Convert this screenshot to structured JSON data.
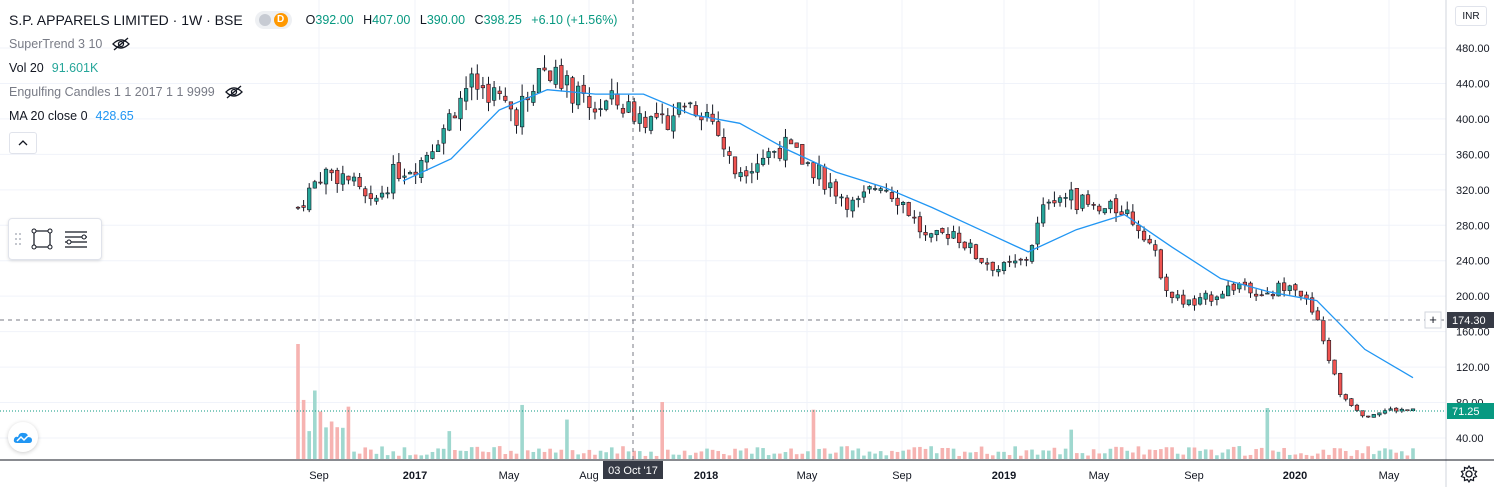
{
  "header": {
    "symbol": "S.P. APPARELS LIMITED · 1W · BSE",
    "badge_letter": "D",
    "ohlc": {
      "o_label": "O",
      "o": "392.00",
      "h_label": "H",
      "h": "407.00",
      "l_label": "L",
      "l": "390.00",
      "c_label": "C",
      "c": "398.25",
      "change": "+6.10 (+1.56%)"
    }
  },
  "indicators": [
    {
      "name": "SuperTrend 3 10",
      "value": "",
      "hidden": true
    },
    {
      "name": "Vol 20",
      "value": "91.601K",
      "hidden": false
    },
    {
      "name": "Engulfing Candles 1 1 2017 1 1 9999",
      "value": "",
      "hidden": true
    },
    {
      "name": "MA 20 close 0",
      "value": "428.65",
      "hidden": false
    }
  ],
  "currency": "INR",
  "crosshair": {
    "date_label": "03 Oct '17",
    "price_label": "174.30"
  },
  "last_price_label": "71.25",
  "colors": {
    "up": "#26a69a",
    "down": "#ef5350",
    "ma": "#2196f3",
    "vol_up": "#9fd8cf",
    "vol_down": "#f6b3b1",
    "last_price": "#089981"
  },
  "chart_data": {
    "type": "candlestick",
    "interval": "1W",
    "x_axis_ticks": [
      "Sep",
      "2017",
      "May",
      "Aug",
      "2018",
      "May",
      "Sep",
      "2019",
      "May",
      "Sep",
      "2020",
      "May"
    ],
    "y_axis_ticks": [
      40,
      80,
      120,
      160,
      200,
      240,
      280,
      320,
      360,
      400,
      440,
      480
    ],
    "ylim": [
      20,
      500
    ],
    "close_series_approx": [
      {
        "date": "2016-08",
        "close": 300
      },
      {
        "date": "2016-09",
        "close": 340
      },
      {
        "date": "2016-10",
        "close": 335
      },
      {
        "date": "2016-11",
        "close": 300
      },
      {
        "date": "2016-12",
        "close": 340
      },
      {
        "date": "2017-01",
        "close": 350
      },
      {
        "date": "2017-02",
        "close": 390
      },
      {
        "date": "2017-03",
        "close": 440
      },
      {
        "date": "2017-04",
        "close": 430
      },
      {
        "date": "2017-05",
        "close": 405
      },
      {
        "date": "2017-06",
        "close": 460
      },
      {
        "date": "2017-07",
        "close": 440
      },
      {
        "date": "2017-08",
        "close": 410
      },
      {
        "date": "2017-09",
        "close": 420
      },
      {
        "date": "2017-10",
        "close": 405
      },
      {
        "date": "2017-11",
        "close": 395
      },
      {
        "date": "2017-12",
        "close": 420
      },
      {
        "date": "2018-01",
        "close": 405
      },
      {
        "date": "2018-02",
        "close": 340
      },
      {
        "date": "2018-03",
        "close": 355
      },
      {
        "date": "2018-04",
        "close": 370
      },
      {
        "date": "2018-05",
        "close": 350
      },
      {
        "date": "2018-06",
        "close": 325
      },
      {
        "date": "2018-07",
        "close": 300
      },
      {
        "date": "2018-08",
        "close": 330
      },
      {
        "date": "2018-09",
        "close": 305
      },
      {
        "date": "2018-10",
        "close": 260
      },
      {
        "date": "2018-11",
        "close": 275
      },
      {
        "date": "2018-12",
        "close": 245
      },
      {
        "date": "2019-01",
        "close": 230
      },
      {
        "date": "2019-02",
        "close": 240
      },
      {
        "date": "2019-03",
        "close": 315
      },
      {
        "date": "2019-04",
        "close": 310
      },
      {
        "date": "2019-05",
        "close": 295
      },
      {
        "date": "2019-06",
        "close": 300
      },
      {
        "date": "2019-07",
        "close": 270
      },
      {
        "date": "2019-08",
        "close": 200
      },
      {
        "date": "2019-09",
        "close": 190
      },
      {
        "date": "2019-10",
        "close": 205
      },
      {
        "date": "2019-11",
        "close": 215
      },
      {
        "date": "2019-12",
        "close": 200
      },
      {
        "date": "2020-01",
        "close": 220
      },
      {
        "date": "2020-02",
        "close": 175
      },
      {
        "date": "2020-03",
        "close": 90
      },
      {
        "date": "2020-04",
        "close": 65
      },
      {
        "date": "2020-05",
        "close": 72
      },
      {
        "date": "2020-06",
        "close": 71
      }
    ],
    "ma20_approx": [
      {
        "date": "2016-12",
        "value": 330
      },
      {
        "date": "2017-02",
        "value": 355
      },
      {
        "date": "2017-04",
        "value": 410
      },
      {
        "date": "2017-06",
        "value": 433
      },
      {
        "date": "2017-08",
        "value": 428
      },
      {
        "date": "2017-10",
        "value": 428
      },
      {
        "date": "2017-12",
        "value": 405
      },
      {
        "date": "2018-02",
        "value": 395
      },
      {
        "date": "2018-04",
        "value": 365
      },
      {
        "date": "2018-06",
        "value": 340
      },
      {
        "date": "2018-08",
        "value": 323
      },
      {
        "date": "2018-10",
        "value": 300
      },
      {
        "date": "2018-12",
        "value": 275
      },
      {
        "date": "2019-02",
        "value": 250
      },
      {
        "date": "2019-04",
        "value": 275
      },
      {
        "date": "2019-06",
        "value": 292
      },
      {
        "date": "2019-08",
        "value": 255
      },
      {
        "date": "2019-10",
        "value": 220
      },
      {
        "date": "2019-12",
        "value": 205
      },
      {
        "date": "2020-02",
        "value": 195
      },
      {
        "date": "2020-04",
        "value": 140
      },
      {
        "date": "2020-06",
        "value": 108
      }
    ]
  }
}
